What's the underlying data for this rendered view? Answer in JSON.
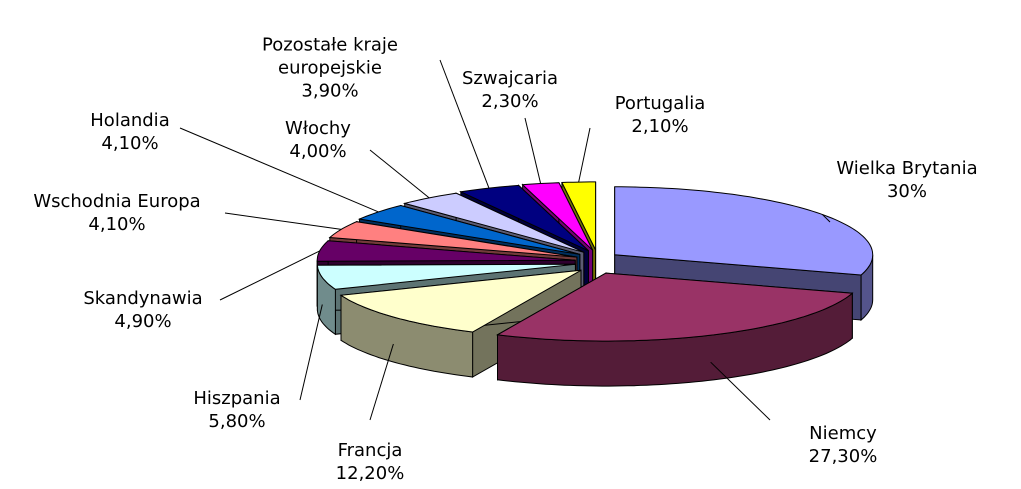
{
  "chart_data": {
    "type": "pie",
    "categories": [
      "Wielka Brytania",
      "Niemcy",
      "Francja",
      "Hiszpania",
      "Skandynawia",
      "Wschodnia Europa",
      "Holandia",
      "Włochy",
      "Pozostałe kraje europejskie",
      "Szwajcaria",
      "Portugalia"
    ],
    "values": [
      30,
      27.3,
      12.2,
      5.8,
      4.9,
      4.1,
      4.1,
      4.0,
      3.9,
      2.3,
      2.1
    ],
    "value_labels": [
      "30%",
      "27,30%",
      "12,20%",
      "5,80%",
      "4,90%",
      "4,10%",
      "4,10%",
      "4,00%",
      "3,90%",
      "2,30%",
      "2,10%"
    ],
    "colors": [
      "#9999ff",
      "#993366",
      "#ffffcc",
      "#ccffff",
      "#660066",
      "#ff8080",
      "#0066cc",
      "#ccccff",
      "#000080",
      "#ff00ff",
      "#ffff00"
    ]
  }
}
